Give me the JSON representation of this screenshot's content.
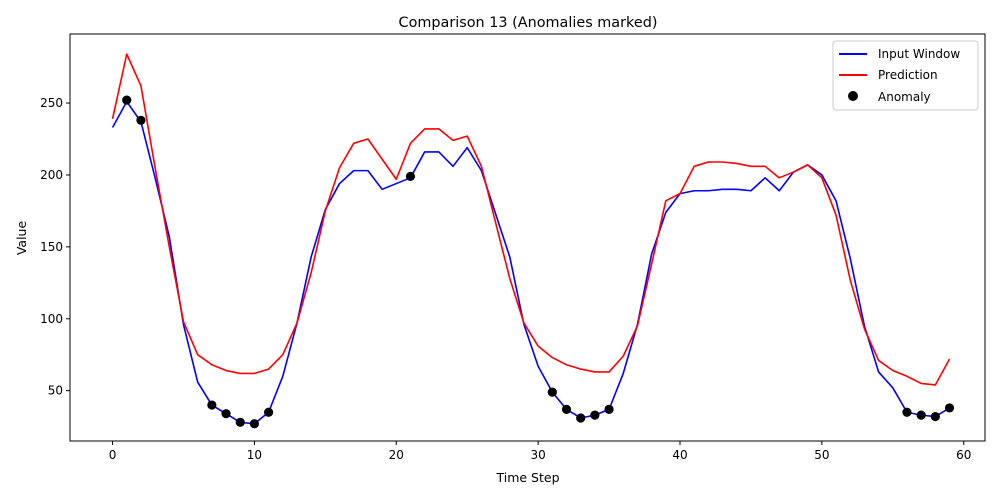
{
  "chart_data": {
    "type": "line",
    "title": "Comparison 13 (Anomalies marked)",
    "xlabel": "Time Step",
    "ylabel": "Value",
    "xlim": [
      -3,
      61.5
    ],
    "ylim": [
      15,
      298
    ],
    "xticks": [
      0,
      10,
      20,
      30,
      40,
      50,
      60
    ],
    "yticks": [
      50,
      100,
      150,
      200,
      250
    ],
    "grid": false,
    "legend_position": "top-right",
    "legend": [
      "Input Window",
      "Prediction",
      "Anomaly"
    ],
    "colors": {
      "input": "#0000ff",
      "prediction": "#ff0000",
      "anomaly": "#000000"
    },
    "x": [
      0,
      1,
      2,
      3,
      4,
      5,
      6,
      7,
      8,
      9,
      10,
      11,
      12,
      13,
      14,
      15,
      16,
      17,
      18,
      19,
      20,
      21,
      22,
      23,
      24,
      25,
      26,
      27,
      28,
      29,
      30,
      31,
      32,
      33,
      34,
      35,
      36,
      37,
      38,
      39,
      40,
      41,
      42,
      43,
      44,
      45,
      46,
      47,
      48,
      49,
      50,
      51,
      52,
      53,
      54,
      55,
      56,
      57,
      58,
      59
    ],
    "series": [
      {
        "name": "Input Window",
        "values": [
          233,
          251,
          237,
          198,
          157,
          96,
          56,
          40,
          34,
          28,
          27,
          35,
          60,
          97,
          143,
          176,
          194,
          203,
          203,
          190,
          194,
          198,
          216,
          216,
          206,
          219,
          203,
          173,
          143,
          96,
          67,
          49,
          37,
          31,
          33,
          37,
          62,
          96,
          145,
          174,
          187,
          189,
          189,
          190,
          190,
          189,
          198,
          189,
          202,
          207,
          200,
          182,
          142,
          95,
          63,
          52,
          35,
          33,
          32,
          38
        ]
      },
      {
        "name": "Prediction",
        "values": [
          239,
          284,
          262,
          205,
          150,
          98,
          75,
          68,
          64,
          62,
          62,
          65,
          75,
          97,
          132,
          175,
          205,
          222,
          225,
          211,
          197,
          222,
          232,
          232,
          224,
          227,
          206,
          167,
          128,
          97,
          81,
          73,
          68,
          65,
          63,
          63,
          74,
          95,
          138,
          182,
          187,
          206,
          209,
          209,
          208,
          206,
          206,
          198,
          202,
          207,
          198,
          172,
          127,
          93,
          71,
          64,
          60,
          55,
          54,
          72
        ]
      }
    ],
    "anomalies": {
      "name": "Anomaly",
      "x": [
        1,
        2,
        7,
        8,
        9,
        10,
        11,
        21,
        31,
        32,
        33,
        34,
        35,
        56,
        57,
        58,
        59
      ],
      "y": [
        252,
        238,
        40,
        34,
        28,
        27,
        35,
        199,
        49,
        37,
        31,
        33,
        37,
        35,
        33,
        32,
        38
      ]
    }
  }
}
